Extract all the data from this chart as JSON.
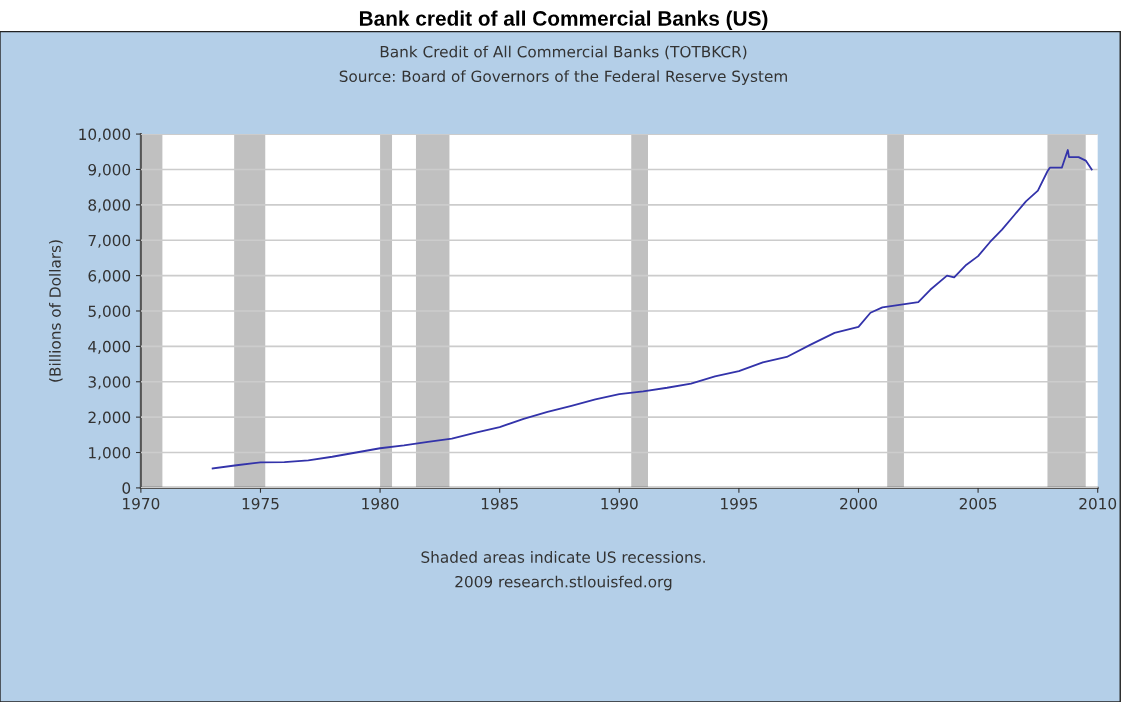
{
  "chart_data": {
    "type": "line",
    "title": "Bank credit of all Commercial Banks (US)",
    "subtitle": "Bank Credit of All Commercial Banks (TOTBKCR)",
    "ylabel": "(Billions of Dollars)",
    "annotations": [
      "Source: Board of Governors of the Federal Reserve System",
      "Shaded areas indicate US recessions.",
      "2009 research.stlouisfed.org"
    ],
    "x": [
      1973.0,
      1974.0,
      1975.0,
      1976.0,
      1977.0,
      1978.0,
      1979.0,
      1980.0,
      1981.0,
      1982.0,
      1983.0,
      1984.0,
      1985.0,
      1986.0,
      1987.0,
      1988.0,
      1989.0,
      1990.0,
      1991.0,
      1992.0,
      1993.0,
      1994.0,
      1995.0,
      1996.0,
      1997.0,
      1998.0,
      1999.0,
      2000.0,
      2000.5,
      2001.0,
      2002.0,
      2002.5,
      2003.0,
      2003.7,
      2004.0,
      2004.5,
      2005.0,
      2005.5,
      2006.0,
      2006.5,
      2007.0,
      2007.5,
      2007.9,
      2008.0,
      2008.5,
      2008.75,
      2008.8,
      2009.2,
      2009.5,
      2009.75
    ],
    "series": [
      {
        "color": "#3333aa",
        "values": [
          550,
          640,
          720,
          730,
          780,
          880,
          1000,
          1120,
          1200,
          1300,
          1390,
          1560,
          1720,
          1950,
          2150,
          2320,
          2500,
          2650,
          2730,
          2830,
          2950,
          3150,
          3300,
          3550,
          3700,
          4050,
          4380,
          4550,
          4950,
          5100,
          5200,
          5250,
          5600,
          6000,
          5950,
          6300,
          6550,
          6950,
          7300,
          7700,
          8100,
          8400,
          8950,
          9050,
          9050,
          9550,
          9350,
          9350,
          9250,
          9000
        ]
      }
    ],
    "xlim": [
      1970,
      2010
    ],
    "xticks": [
      1970,
      1975,
      1980,
      1985,
      1990,
      1995,
      2000,
      2005,
      2010
    ],
    "ylim": [
      0,
      10000
    ],
    "yticks": [
      0,
      {
        "value": 1000,
        "label": "1,000"
      },
      {
        "value": 2000,
        "label": "2,000"
      },
      {
        "value": 3000,
        "label": "3,000"
      },
      {
        "value": 4000,
        "label": "4,000"
      },
      {
        "value": 5000,
        "label": "5,000"
      },
      {
        "value": 6000,
        "label": "6,000"
      },
      {
        "value": 7000,
        "label": "7,000"
      },
      {
        "value": 8000,
        "label": "8,000"
      },
      {
        "value": 9000,
        "label": "9,000"
      },
      {
        "value": 10000,
        "label": "10,000"
      }
    ],
    "bands": [
      {
        "axis": "x",
        "from": 1970.0,
        "to": 1970.9,
        "color": "#c0c0c0"
      },
      {
        "axis": "x",
        "from": 1973.9,
        "to": 1975.2,
        "color": "#c0c0c0"
      },
      {
        "axis": "x",
        "from": 1980.0,
        "to": 1980.5,
        "color": "#c0c0c0"
      },
      {
        "axis": "x",
        "from": 1981.5,
        "to": 1982.9,
        "color": "#c0c0c0"
      },
      {
        "axis": "x",
        "from": 1990.5,
        "to": 1991.2,
        "color": "#c0c0c0"
      },
      {
        "axis": "x",
        "from": 2001.2,
        "to": 2001.9,
        "color": "#c0c0c0"
      },
      {
        "axis": "x",
        "from": 2007.9,
        "to": 2009.5,
        "color": "#c0c0c0"
      }
    ],
    "grid": "y",
    "line_style": "solid"
  }
}
